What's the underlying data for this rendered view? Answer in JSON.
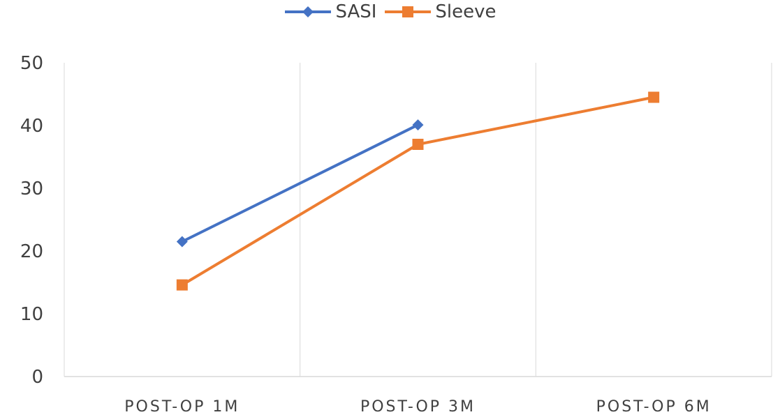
{
  "chart_data": {
    "type": "line",
    "categories": [
      "POST-OP 1M",
      "POST-OP 3M",
      "POST-OP 6M"
    ],
    "series": [
      {
        "name": "SASI",
        "values": [
          21.5,
          40.1,
          null
        ],
        "color": "#4472c4",
        "marker": "diamond"
      },
      {
        "name": "Sleeve",
        "values": [
          14.6,
          37.0,
          44.5
        ],
        "color": "#ed7d31",
        "marker": "square"
      }
    ],
    "ylim": [
      0,
      50
    ],
    "yticks": [
      "0",
      "10",
      "20",
      "30",
      "40",
      "50"
    ],
    "grid": "vertical",
    "legend_position": "top-center",
    "colors": {
      "axis": "#d9d9d9",
      "grid": "#d9d9d9",
      "text": "#404040"
    }
  }
}
